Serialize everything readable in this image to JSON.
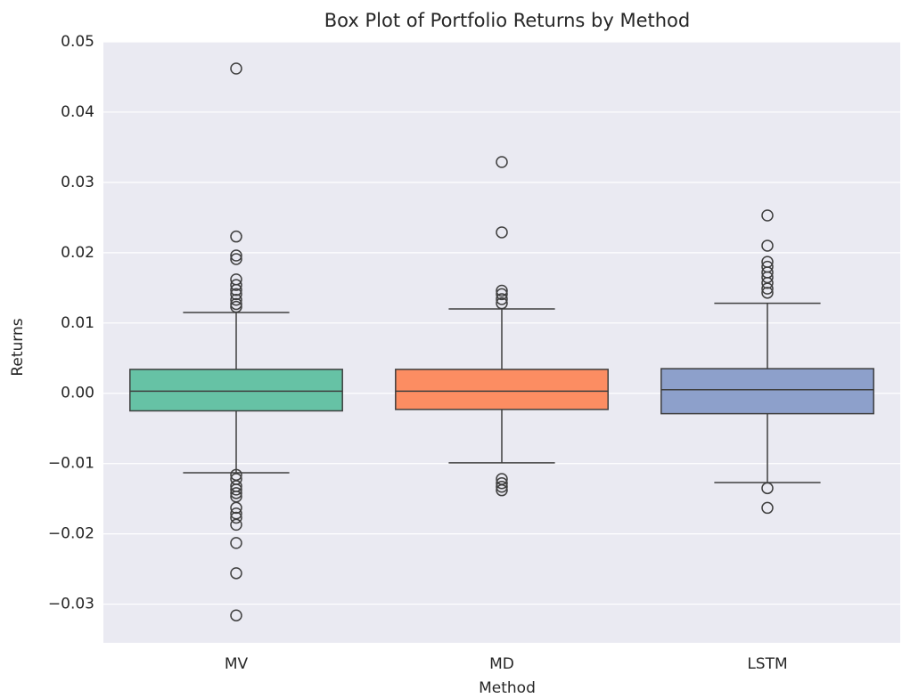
{
  "chart_data": {
    "type": "box",
    "title": "Box Plot of Portfolio Returns by Method",
    "x_label": "Method",
    "y_label": "Returns",
    "categories": [
      "MV",
      "MD",
      "LSTM"
    ],
    "ylim": [
      -0.0355,
      0.05
    ],
    "yticks": [
      {
        "value": -0.03,
        "label": "−0.03"
      },
      {
        "value": -0.02,
        "label": "−0.02"
      },
      {
        "value": -0.01,
        "label": "−0.01"
      },
      {
        "value": 0,
        "label": "0.00"
      },
      0.01,
      0.02,
      0.03,
      0.04,
      0.05
    ],
    "grid": true,
    "series": [
      {
        "name": "MV",
        "color": "#66c2a5",
        "q1": -0.0025,
        "median": 0.0003,
        "q3": 0.0034,
        "whisker_low": -0.0113,
        "whisker_high": 0.0115,
        "outliers": [
          0.0462,
          0.0223,
          0.0196,
          0.0191,
          0.0162,
          0.0154,
          0.0147,
          0.0141,
          0.0133,
          0.0127,
          0.0123,
          -0.0116,
          -0.0122,
          -0.0132,
          -0.0137,
          -0.0142,
          -0.0147,
          -0.0163,
          -0.0171,
          -0.0177,
          -0.0187,
          -0.0213,
          -0.0256,
          -0.0316
        ]
      },
      {
        "name": "MD",
        "color": "#fc8d62",
        "q1": -0.0023,
        "median": 0.0003,
        "q3": 0.0034,
        "whisker_low": -0.0099,
        "whisker_high": 0.012,
        "outliers": [
          0.0329,
          0.0229,
          0.0146,
          0.0141,
          0.0134,
          0.0128,
          -0.0122,
          -0.0128,
          -0.0133,
          -0.0138
        ]
      },
      {
        "name": "LSTM",
        "color": "#8da0cb",
        "q1": -0.0029,
        "median": 0.0005,
        "q3": 0.0035,
        "whisker_low": -0.0127,
        "whisker_high": 0.0128,
        "outliers": [
          0.0253,
          0.021,
          0.0187,
          0.018,
          0.0172,
          0.0165,
          0.0157,
          0.0149,
          0.0143,
          -0.0135,
          -0.0163
        ]
      }
    ]
  }
}
